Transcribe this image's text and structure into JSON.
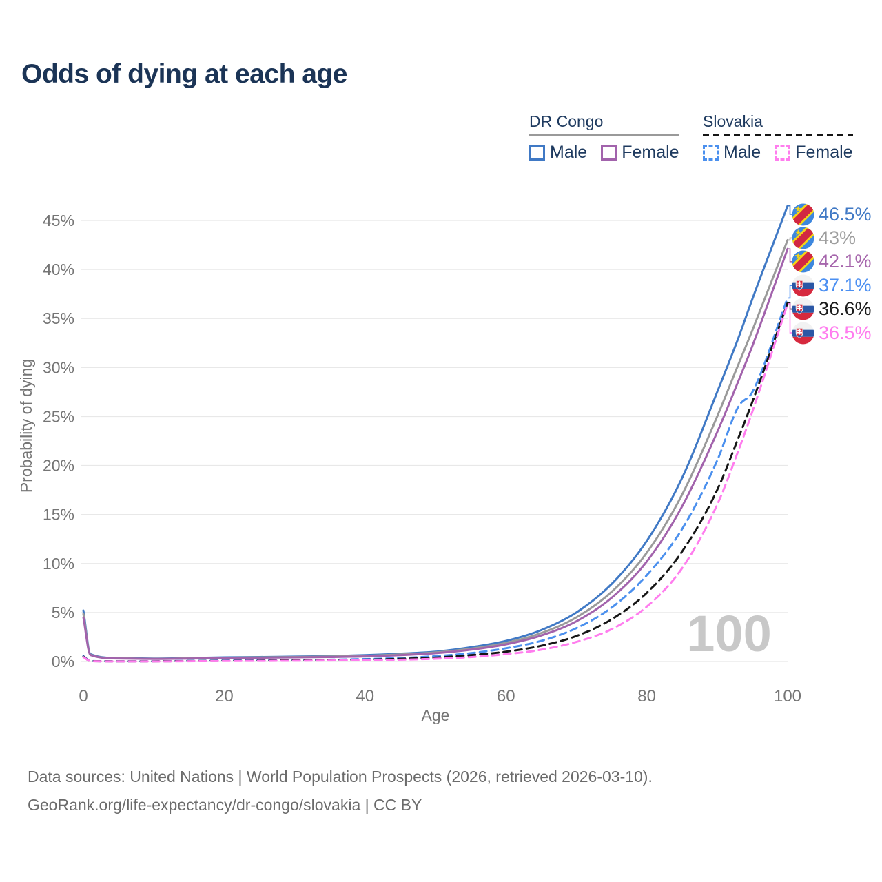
{
  "title": "Odds of dying at each age",
  "watermark": "100",
  "source_line1": "Data sources: United Nations | World Population Prospects (2026, retrieved 2026-03-10).",
  "source_line2": "GeoRank.org/life-expectancy/dr-congo/slovakia | CC BY",
  "colors": {
    "title_text": "#1b3456",
    "legend_text": "#1e3a5f",
    "axis_text": "#757575",
    "grid": "#e8e8e8",
    "watermark": "#c8c8c8",
    "source_text": "#6b6b6b"
  },
  "legend": {
    "groups": [
      {
        "label": "DR Congo",
        "underline_style": "solid",
        "underline_color": "#9a9a9a",
        "items": [
          {
            "label": "Male",
            "color": "#4079c5",
            "dashed": false
          },
          {
            "label": "Female",
            "color": "#a263ac",
            "dashed": false
          }
        ]
      },
      {
        "label": "Slovakia",
        "underline_style": "dashed",
        "underline_color": "#161616",
        "items": [
          {
            "label": "Male",
            "color": "#4b90ee",
            "dashed": true
          },
          {
            "label": "Female",
            "color": "#ff7dee",
            "dashed": true
          }
        ]
      }
    ]
  },
  "chart_data": {
    "type": "line",
    "title": "Odds of dying at each age",
    "xlabel": "Age",
    "ylabel": "Probability of dying",
    "xlim": [
      0,
      100
    ],
    "ylim_percent": [
      0,
      47
    ],
    "grid": "horizontal",
    "legend_position": "top-right",
    "values_unit": "percent probability of dying at each age",
    "x_tick_labels": [
      "0",
      "20",
      "40",
      "60",
      "80",
      "100"
    ],
    "y_tick_labels": [
      "0%",
      "5%",
      "10%",
      "15%",
      "20%",
      "25%",
      "30%",
      "35%",
      "40%",
      "45%"
    ],
    "ages": [
      0,
      1,
      5,
      10,
      15,
      20,
      25,
      30,
      35,
      40,
      45,
      50,
      55,
      60,
      65,
      70,
      75,
      80,
      85,
      90,
      93,
      95,
      100
    ],
    "series": [
      {
        "name": "DR Congo Male",
        "country": "DR Congo",
        "group": "Male",
        "color": "#4079c5",
        "dash": "solid",
        "end_value": 46.5,
        "end_label": "46.5%",
        "end_label_color": "#4079c5",
        "flag": "cd",
        "values": [
          5.2,
          0.75,
          0.35,
          0.3,
          0.35,
          0.42,
          0.46,
          0.5,
          0.56,
          0.65,
          0.8,
          1.0,
          1.45,
          2.1,
          3.2,
          5.0,
          7.9,
          12.3,
          18.7,
          27.5,
          33.0,
          37.0,
          46.5
        ]
      },
      {
        "name": "DR Congo",
        "country": "DR Congo",
        "group": "All",
        "color": "#9a9a9a",
        "dash": "solid",
        "end_value": 43.0,
        "end_label": "43%",
        "end_label_color": "#9e9e9e",
        "flag": "cd",
        "values": [
          4.85,
          0.7,
          0.33,
          0.28,
          0.32,
          0.38,
          0.42,
          0.46,
          0.51,
          0.58,
          0.72,
          0.92,
          1.3,
          1.9,
          2.9,
          4.5,
          7.1,
          11.1,
          17.0,
          25.0,
          30.3,
          33.8,
          43.0
        ]
      },
      {
        "name": "DR Congo Female",
        "country": "DR Congo",
        "group": "Female",
        "color": "#a263ac",
        "dash": "solid",
        "end_value": 42.1,
        "end_label": "42.1%",
        "end_label_color": "#a666ac",
        "flag": "cd",
        "values": [
          4.5,
          0.66,
          0.31,
          0.27,
          0.3,
          0.35,
          0.38,
          0.42,
          0.46,
          0.52,
          0.65,
          0.85,
          1.2,
          1.75,
          2.65,
          4.1,
          6.5,
          10.2,
          15.8,
          23.4,
          28.6,
          32.2,
          42.1
        ]
      },
      {
        "name": "Slovakia Male",
        "country": "Slovakia",
        "group": "Male",
        "color": "#4b90ee",
        "dash": "dashed",
        "end_value": 37.1,
        "end_label": "37.1%",
        "end_label_color": "#4b8ff2",
        "flag": "sk",
        "values": [
          0.55,
          0.05,
          0.02,
          0.02,
          0.06,
          0.1,
          0.12,
          0.14,
          0.18,
          0.25,
          0.35,
          0.55,
          0.85,
          1.35,
          2.1,
          3.4,
          5.5,
          8.8,
          13.5,
          20.5,
          26.0,
          27.5,
          37.1
        ]
      },
      {
        "name": "Slovakia",
        "country": "Slovakia",
        "group": "All",
        "color": "#161616",
        "dash": "dashed",
        "end_value": 36.6,
        "end_label": "36.6%",
        "end_label_color": "#1c1c1c",
        "flag": "sk",
        "values": [
          0.5,
          0.04,
          0.02,
          0.02,
          0.04,
          0.07,
          0.09,
          0.11,
          0.14,
          0.18,
          0.27,
          0.4,
          0.65,
          1.0,
          1.6,
          2.6,
          4.3,
          7.0,
          11.2,
          17.5,
          22.8,
          26.5,
          36.6
        ]
      },
      {
        "name": "Slovakia Female",
        "country": "Slovakia",
        "group": "Female",
        "color": "#ff7dee",
        "dash": "dashed",
        "end_value": 36.5,
        "end_label": "36.5%",
        "end_label_color": "#ff7bee",
        "flag": "sk",
        "values": [
          0.45,
          0.04,
          0.01,
          0.01,
          0.03,
          0.05,
          0.06,
          0.08,
          0.1,
          0.13,
          0.18,
          0.28,
          0.45,
          0.75,
          1.2,
          2.0,
          3.3,
          5.6,
          9.5,
          16.0,
          21.5,
          25.5,
          36.5
        ]
      }
    ]
  }
}
